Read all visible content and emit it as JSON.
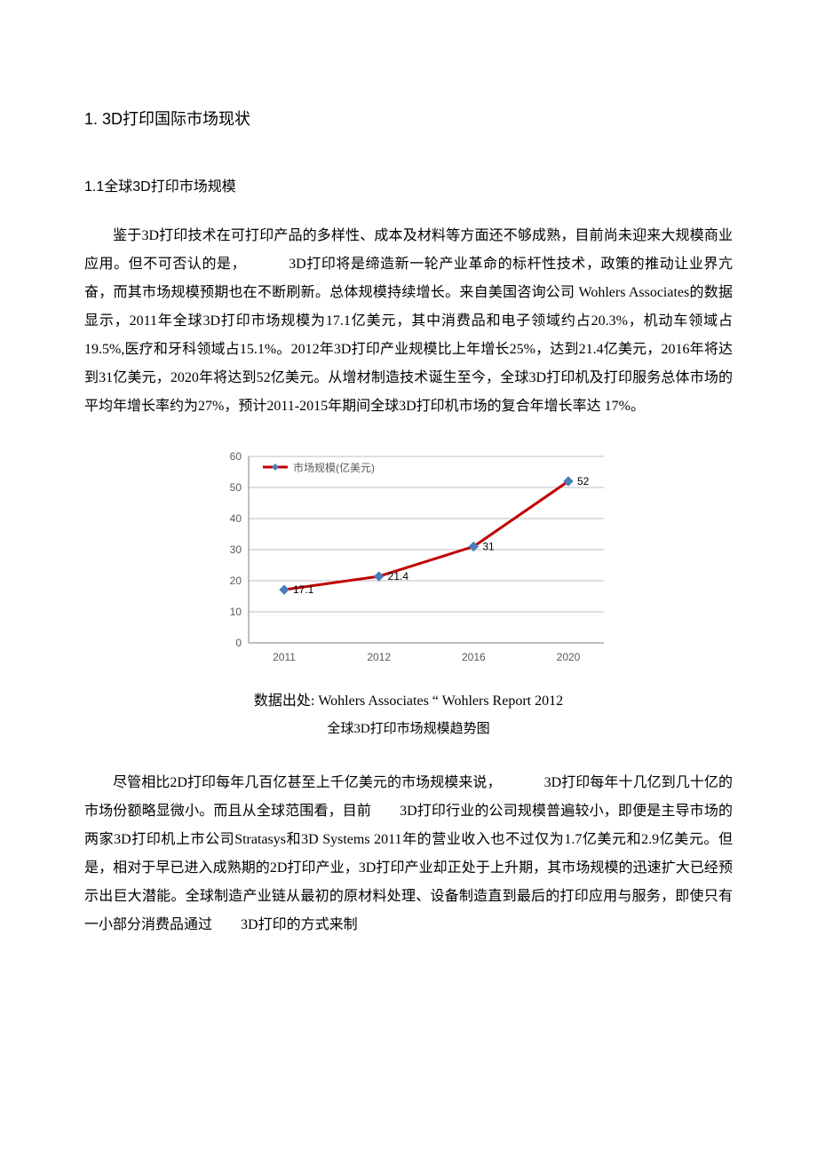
{
  "headings": {
    "h1": "1.  3D打印国际市场现状",
    "h2": "1.1全球3D打印市场规模"
  },
  "paragraphs": {
    "p1": "鉴于3D打印技术在可打印产品的多样性、成本及材料等方面还不够成熟，目前尚未迎来大规模商业应用。但不可否认的是，",
    "p1b": "3D打印将是缔造新一轮产业革命的标杆性技术，政策的推动让业界亢奋，而其市场规模预期也在不断刷新。总体规模持续增长。来自美国咨询公司 Wohlers Associates的数据显示，2011年全球3D打印市场规模为17.1亿美元，其中消费品和电子领域约占20.3%，机动车领域占19.5%,医疗和牙科领域占15.1%。2012年3D打印产业规模比上年增长25%，达到21.4亿美元，2016年将达到31亿美元，2020年将达到52亿美元。从增材制造技术诞生至今，全球3D打印机及打印服务总体市场的平均年增长率约为27%，预计2011-2015年期间全球3D打印机市场的复合年增长率达 17%。",
    "p2": "尽管相比2D打印每年几百亿甚至上千亿美元的市场规模来说，",
    "p2b": "3D打印每年十几亿到几十亿的市场份额略显微小。而且从全球范围看，目前",
    "p2c": "3D打印行业的公司规模普遍较小，即便是主导市场的两家3D打印机上市公司Stratasys和3D Systems 2011年的营业收入也不过仅为1.7亿美元和2.9亿美元。但是，相对于早已进入成熟期的2D打印产业，3D打印产业却正处于上升期，其市场规模的迅速扩大已经预示出巨大潜能。全球制造产业链从最初的原材料处理、设备制造直到最后的打印应用与服务，即使只有一小部分消费品通过",
    "p2d": "3D打印的方式来制"
  },
  "chart": {
    "type": "line",
    "legend_label": "市场规模(亿美元)",
    "categories": [
      "2011",
      "2012",
      "2016",
      "2020"
    ],
    "values": [
      17.1,
      21.4,
      31,
      52
    ],
    "value_labels": [
      "17.1",
      "21.4",
      "31",
      "52"
    ],
    "ylim": [
      0,
      60
    ],
    "ytick_step": 10,
    "yticks": [
      0,
      10,
      20,
      30,
      40,
      50,
      60
    ],
    "line_color": "#c00000",
    "line_width": 3,
    "marker_color": "#4a7ebb",
    "marker_size": 5,
    "grid_color": "#bfbfbf",
    "axis_color": "#808080",
    "background_color": "#ffffff",
    "tick_font_color": "#595959",
    "tick_fontsize": 12,
    "legend_font_color": "#595959",
    "legend_fontsize": 12,
    "value_label_color": "#000000",
    "value_label_fontsize": 12
  },
  "captions": {
    "source": "数据出处:  Wohlers Associates  “ Wohlers Report 2012",
    "title": "全球3D打印市场规模趋势图"
  }
}
